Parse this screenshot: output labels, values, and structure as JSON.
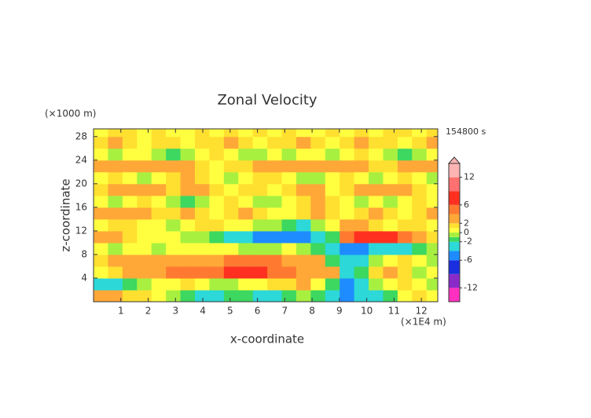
{
  "chart_data": {
    "type": "contour",
    "title": "Zonal Velocity",
    "xlabel": "x-coordinate",
    "ylabel": "z-coordinate",
    "xunit": "(×1E4 m)",
    "yunit": "(×1000 m)",
    "time_label": "154800 s",
    "xlim": [
      0,
      12.6
    ],
    "ylim": [
      0,
      29.3
    ],
    "xticks": [
      1,
      2,
      3,
      4,
      5,
      6,
      7,
      8,
      9,
      10,
      11,
      12
    ],
    "yticks": [
      4,
      8,
      12,
      16,
      20,
      24,
      28
    ],
    "x": [
      0.265,
      0.795,
      1.325,
      1.855,
      2.385,
      2.915,
      3.445,
      3.975,
      4.505,
      5.035,
      5.565,
      6.095,
      6.625,
      7.155,
      7.685,
      8.215,
      8.745,
      9.275,
      9.805,
      10.335,
      10.865,
      11.395,
      11.925,
      12.455
    ],
    "y": [
      1,
      3,
      5,
      7,
      9,
      11,
      13,
      15,
      17,
      19,
      21,
      23,
      25,
      27,
      29
    ],
    "z": [
      [
        3,
        3,
        1,
        1,
        0,
        -1,
        -2,
        -3,
        -3,
        -2,
        -2,
        -3,
        -3,
        -2,
        -1,
        -2,
        -3,
        -5,
        -4,
        -3,
        -2,
        0,
        1,
        0
      ],
      [
        -3,
        -3,
        -2,
        -1,
        0,
        0,
        1,
        0,
        -1,
        -1,
        0,
        0,
        1,
        1,
        2,
        0,
        -2,
        -5,
        -3,
        -1,
        0,
        1,
        0,
        -1
      ],
      [
        0,
        1,
        2,
        3,
        3,
        4,
        4,
        4,
        5,
        6,
        6,
        6,
        5,
        4,
        3,
        3,
        2,
        -3,
        -2,
        1,
        2,
        1,
        -1,
        0
      ],
      [
        1,
        2,
        3,
        3,
        3,
        3,
        3,
        3,
        3,
        4,
        4,
        4,
        4,
        3,
        3,
        2,
        -2,
        -4,
        -3,
        -1,
        0,
        1,
        0,
        -1
      ],
      [
        0,
        -1,
        0,
        0,
        -1,
        0,
        0,
        0,
        0,
        0,
        -1,
        -1,
        -1,
        0,
        -1,
        -2,
        -4,
        -5,
        -5,
        -4,
        -4,
        -3,
        -2,
        -1
      ],
      [
        3,
        3,
        1,
        0,
        0,
        0,
        -1,
        -1,
        -2,
        -3,
        -4,
        -5,
        -5,
        -5,
        -6,
        -4,
        -2,
        4,
        6,
        7,
        6,
        4,
        2,
        1
      ],
      [
        0,
        1,
        1,
        0,
        0,
        -1,
        0,
        1,
        1,
        0,
        0,
        -1,
        -1,
        -2,
        -3,
        -1,
        0,
        2,
        2,
        1,
        0,
        1,
        1,
        0
      ],
      [
        3,
        3,
        3,
        2,
        1,
        1,
        2,
        1,
        0,
        1,
        2,
        1,
        0,
        0,
        1,
        2,
        1,
        0,
        1,
        2,
        1,
        0,
        1,
        2
      ],
      [
        0,
        -1,
        0,
        1,
        0,
        -1,
        -2,
        -1,
        0,
        1,
        0,
        -1,
        -1,
        0,
        1,
        3,
        1,
        0,
        -1,
        0,
        -1,
        0,
        1,
        0
      ],
      [
        1,
        2,
        3,
        3,
        2,
        1,
        2,
        3,
        1,
        0,
        1,
        1,
        0,
        1,
        2,
        2,
        0,
        1,
        2,
        3,
        3,
        2,
        1,
        0
      ],
      [
        0,
        1,
        0,
        -1,
        0,
        1,
        2,
        1,
        0,
        -1,
        0,
        1,
        1,
        0,
        -1,
        -1,
        0,
        1,
        0,
        -1,
        0,
        1,
        0,
        -1
      ],
      [
        2,
        3,
        3,
        3,
        3,
        3,
        2,
        1,
        0,
        1,
        1,
        2,
        2,
        3,
        3,
        3,
        3,
        3,
        2,
        1,
        1,
        2,
        3,
        2
      ],
      [
        0,
        -1,
        0,
        0,
        -1,
        -2,
        -1,
        0,
        1,
        0,
        -1,
        -1,
        0,
        -1,
        0,
        0,
        -1,
        0,
        1,
        0,
        -1,
        -2,
        -1,
        0
      ],
      [
        1,
        2,
        1,
        0,
        1,
        1,
        0,
        1,
        1,
        2,
        1,
        0,
        1,
        1,
        2,
        1,
        0,
        1,
        2,
        1,
        1,
        0,
        1,
        2
      ],
      [
        0,
        1,
        1,
        0,
        1,
        0,
        0,
        1,
        0,
        1,
        0,
        1,
        0,
        1,
        0,
        0,
        1,
        0,
        1,
        0,
        1,
        1,
        0,
        1
      ]
    ],
    "levels": [
      -15,
      -12,
      -9,
      -6,
      -4,
      -2,
      -1,
      0,
      1,
      2,
      4,
      6,
      9,
      12,
      15
    ],
    "colors": [
      "#ff30c0",
      "#8a2ac8",
      "#1a2ee0",
      "#1e8cff",
      "#2cd8d8",
      "#3cd860",
      "#a8f040",
      "#ffff40",
      "#ffe030",
      "#ffa838",
      "#ff7a30",
      "#ff3020",
      "#ff7070",
      "#ffb4b4"
    ],
    "cbticks": [
      -12,
      -6,
      -2,
      0,
      2,
      6,
      12
    ],
    "extend_top": true
  }
}
